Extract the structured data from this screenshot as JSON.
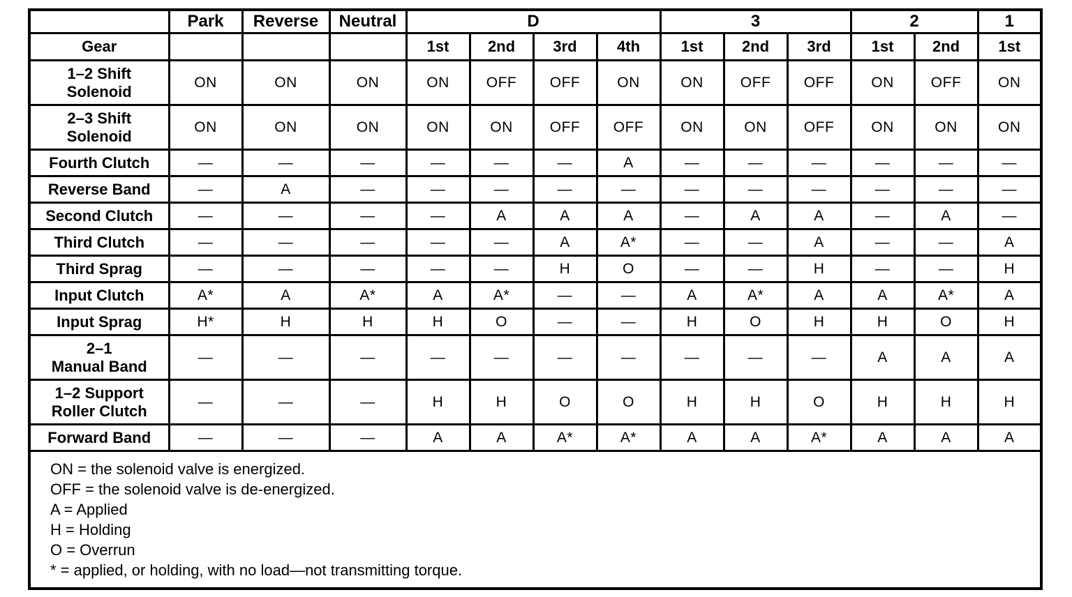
{
  "table": {
    "group_header": [
      {
        "label": "",
        "span": 1
      },
      {
        "label": "Park",
        "span": 1
      },
      {
        "label": "Reverse",
        "span": 1
      },
      {
        "label": "Neutral",
        "span": 1
      },
      {
        "label": "D",
        "span": 4
      },
      {
        "label": "3",
        "span": 3
      },
      {
        "label": "2",
        "span": 2
      },
      {
        "label": "1",
        "span": 1
      }
    ],
    "gear_row": {
      "label": "Gear",
      "cells": [
        "",
        "",
        "",
        "1st",
        "2nd",
        "3rd",
        "4th",
        "1st",
        "2nd",
        "3rd",
        "1st",
        "2nd",
        "1st"
      ]
    },
    "rows": [
      {
        "label": "1–2 Shift\nSolenoid",
        "values": [
          "ON",
          "ON",
          "ON",
          "ON",
          "OFF",
          "OFF",
          "ON",
          "ON",
          "OFF",
          "OFF",
          "ON",
          "OFF",
          "ON"
        ]
      },
      {
        "label": "2–3 Shift\nSolenoid",
        "values": [
          "ON",
          "ON",
          "ON",
          "ON",
          "ON",
          "OFF",
          "OFF",
          "ON",
          "ON",
          "OFF",
          "ON",
          "ON",
          "ON"
        ]
      },
      {
        "label": "Fourth Clutch",
        "values": [
          "—",
          "—",
          "—",
          "—",
          "—",
          "—",
          "A",
          "—",
          "—",
          "—",
          "—",
          "—",
          "—"
        ]
      },
      {
        "label": "Reverse Band",
        "values": [
          "—",
          "A",
          "—",
          "—",
          "—",
          "—",
          "—",
          "—",
          "—",
          "—",
          "—",
          "—",
          "—"
        ]
      },
      {
        "label": "Second Clutch",
        "values": [
          "—",
          "—",
          "—",
          "—",
          "A",
          "A",
          "A",
          "—",
          "A",
          "A",
          "—",
          "A",
          "—"
        ]
      },
      {
        "label": "Third Clutch",
        "values": [
          "—",
          "—",
          "—",
          "—",
          "—",
          "A",
          "A*",
          "—",
          "—",
          "A",
          "—",
          "—",
          "A"
        ]
      },
      {
        "label": "Third Sprag",
        "values": [
          "—",
          "—",
          "—",
          "—",
          "—",
          "H",
          "O",
          "—",
          "—",
          "H",
          "—",
          "—",
          "H"
        ]
      },
      {
        "label": "Input Clutch",
        "values": [
          "A*",
          "A",
          "A*",
          "A",
          "A*",
          "—",
          "—",
          "A",
          "A*",
          "A",
          "A",
          "A*",
          "A"
        ]
      },
      {
        "label": "Input Sprag",
        "values": [
          "H*",
          "H",
          "H",
          "H",
          "O",
          "—",
          "—",
          "H",
          "O",
          "H",
          "H",
          "O",
          "H"
        ]
      },
      {
        "label": "2–1\nManual Band",
        "values": [
          "—",
          "—",
          "—",
          "—",
          "—",
          "—",
          "—",
          "—",
          "—",
          "—",
          "A",
          "A",
          "A"
        ]
      },
      {
        "label": "1–2 Support\nRoller Clutch",
        "values": [
          "—",
          "—",
          "—",
          "H",
          "H",
          "O",
          "O",
          "H",
          "H",
          "O",
          "H",
          "H",
          "H"
        ]
      },
      {
        "label": "Forward Band",
        "values": [
          "—",
          "—",
          "—",
          "A",
          "A",
          "A*",
          "A*",
          "A",
          "A",
          "A*",
          "A",
          "A",
          "A"
        ]
      }
    ],
    "legend": [
      "ON = the solenoid valve is energized.",
      "OFF = the solenoid valve is de-energized.",
      "A = Applied",
      "H = Holding",
      "O = Overrun",
      "* = applied, or holding, with no load—not transmitting torque."
    ]
  }
}
